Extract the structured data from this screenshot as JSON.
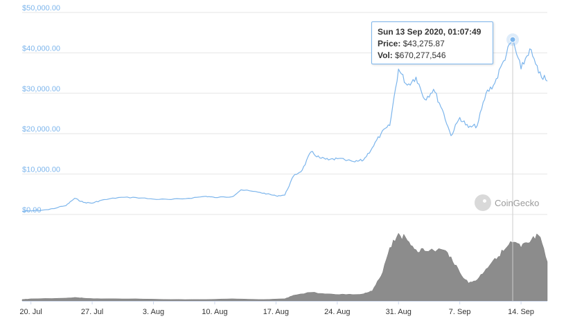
{
  "chart_data": {
    "type": "area",
    "y_ticks": [
      "$0.00",
      "$10,000.00",
      "$20,000.00",
      "$30,000.00",
      "$40,000.00",
      "$50,000.00"
    ],
    "ylim": [
      0,
      50000
    ],
    "x_ticks": [
      "20. Jul",
      "27. Jul",
      "3. Aug",
      "10. Aug",
      "17. Aug",
      "24. Aug",
      "31. Aug",
      "7. Sep",
      "14. Sep"
    ],
    "xlim": [
      "2020-07-19",
      "2020-09-17"
    ],
    "grid": true,
    "series": [
      {
        "kind": "price",
        "color": "#7cb5ec",
        "x": [
          "2020-07-19",
          "2020-07-20",
          "2020-07-22",
          "2020-07-24",
          "2020-07-25",
          "2020-07-26",
          "2020-07-27",
          "2020-07-28",
          "2020-07-30",
          "2020-08-01",
          "2020-08-03",
          "2020-08-05",
          "2020-08-07",
          "2020-08-09",
          "2020-08-10",
          "2020-08-12",
          "2020-08-13",
          "2020-08-15",
          "2020-08-16",
          "2020-08-17",
          "2020-08-18",
          "2020-08-19",
          "2020-08-20",
          "2020-08-21",
          "2020-08-22",
          "2020-08-23",
          "2020-08-24",
          "2020-08-26",
          "2020-08-27",
          "2020-08-28",
          "2020-08-29",
          "2020-08-30",
          "2020-08-31",
          "2020-09-01",
          "2020-09-02",
          "2020-09-03",
          "2020-09-04",
          "2020-09-05",
          "2020-09-06",
          "2020-09-07",
          "2020-09-08",
          "2020-09-09",
          "2020-09-10",
          "2020-09-11",
          "2020-09-12",
          "2020-09-13",
          "2020-09-14",
          "2020-09-15",
          "2020-09-16",
          "2020-09-17"
        ],
        "values": [
          800,
          900,
          1200,
          2200,
          4000,
          3000,
          2800,
          3500,
          4200,
          4200,
          3800,
          3700,
          4000,
          4500,
          4200,
          4400,
          6100,
          5500,
          5100,
          4600,
          4800,
          9500,
          11000,
          15500,
          14000,
          13500,
          13800,
          13000,
          13500,
          16500,
          20000,
          22000,
          36000,
          32000,
          34000,
          28500,
          31000,
          26000,
          19500,
          24000,
          21500,
          22000,
          30000,
          32500,
          38000,
          43275,
          36000,
          41000,
          35000,
          33000
        ]
      },
      {
        "kind": "volume",
        "color": "#8c8c8c",
        "x": [
          "2020-07-19",
          "2020-07-20",
          "2020-07-24",
          "2020-07-25",
          "2020-07-26",
          "2020-07-28",
          "2020-08-01",
          "2020-08-05",
          "2020-08-09",
          "2020-08-12",
          "2020-08-15",
          "2020-08-18",
          "2020-08-19",
          "2020-08-21",
          "2020-08-23",
          "2020-08-25",
          "2020-08-27",
          "2020-08-28",
          "2020-08-29",
          "2020-08-30",
          "2020-08-31",
          "2020-09-01",
          "2020-09-02",
          "2020-09-03",
          "2020-09-05",
          "2020-09-06",
          "2020-09-07",
          "2020-09-08",
          "2020-09-09",
          "2020-09-10",
          "2020-09-11",
          "2020-09-12",
          "2020-09-13",
          "2020-09-14",
          "2020-09-15",
          "2020-09-16",
          "2020-09-17"
        ],
        "values": [
          0.02,
          0.03,
          0.04,
          0.05,
          0.04,
          0.03,
          0.03,
          0.02,
          0.02,
          0.03,
          0.02,
          0.03,
          0.08,
          0.12,
          0.1,
          0.09,
          0.1,
          0.14,
          0.35,
          0.75,
          0.95,
          0.85,
          0.72,
          0.7,
          0.72,
          0.62,
          0.4,
          0.25,
          0.3,
          0.45,
          0.6,
          0.7,
          0.82,
          0.75,
          0.82,
          0.92,
          0.55
        ]
      }
    ],
    "crosshair_x": "2020-09-13T01:07:49"
  },
  "tooltip": {
    "title": "Sun 13 Sep 2020, 01:07:49",
    "price_label": "Price:",
    "price_value": "$43,275.87",
    "vol_label": "Vol:",
    "vol_value": "$670,277,546"
  },
  "branding": {
    "label": "CoinGecko",
    "icon": "coingecko-gecko-logo-icon"
  }
}
